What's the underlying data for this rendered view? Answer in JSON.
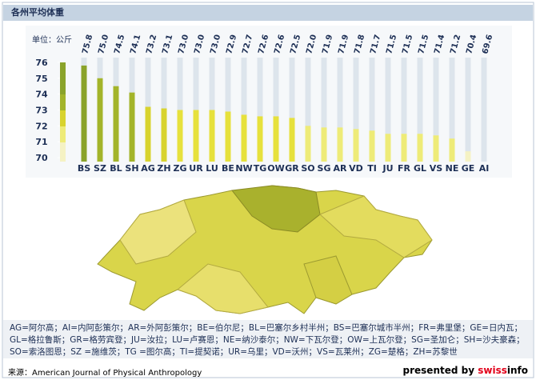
{
  "chart_data": {
    "type": "bar",
    "title": "各州平均体重",
    "unit_label": "单位：公斤",
    "categories": [
      "BS",
      "SZ",
      "BL",
      "SH",
      "AG",
      "ZH",
      "ZG",
      "UR",
      "LU",
      "BE",
      "NW",
      "TG",
      "OW",
      "GR",
      "SO",
      "SG",
      "AR",
      "VD",
      "TI",
      "JU",
      "FR",
      "GL",
      "VS",
      "NE",
      "GE",
      "AI"
    ],
    "values": [
      75.8,
      75.0,
      74.5,
      74.1,
      73.2,
      73.1,
      73.0,
      73.0,
      73.0,
      72.9,
      72.7,
      72.6,
      72.6,
      72.5,
      72.0,
      71.9,
      71.9,
      71.8,
      71.7,
      71.5,
      71.5,
      71.5,
      71.4,
      71.2,
      70.4,
      69.6
    ],
    "value_labels": [
      "75.8",
      "75.0",
      "74.5",
      "74.1",
      "73.2",
      "73.1",
      "73.0",
      "73.0",
      "73.0",
      "72.9",
      "72.7",
      "72.6",
      "72.6",
      "72.5",
      "72.0",
      "71.9",
      "71.9",
      "71.8",
      "71.7",
      "71.5",
      "71.5",
      "71.5",
      "71.4",
      "71.2",
      "70.4",
      "69.6"
    ],
    "colors": [
      "#8aa32a",
      "#a3b42a",
      "#a3b42a",
      "#a3b42a",
      "#d8d32e",
      "#d8d32e",
      "#e6e13c",
      "#e6e13c",
      "#e6e13c",
      "#e6e13c",
      "#e6e13c",
      "#e6e13c",
      "#e6e13c",
      "#e6e13c",
      "#eeeb78",
      "#eeeb78",
      "#eeeb78",
      "#eeeb78",
      "#eeeb78",
      "#eeeb78",
      "#eeeb78",
      "#eeeb78",
      "#eeeb78",
      "#eeeb78",
      "#f5f2c4",
      "#f5f2c4"
    ],
    "ylim": [
      69.75,
      76.3
    ],
    "yticks": [
      70,
      71,
      72,
      73,
      74,
      75,
      76
    ],
    "legend_note": "AG=阿尔高；AI=内阿彭策尔；AR=外阿彭策尔；BE=伯尔尼；BL=巴塞尔乡村半州；BS=巴塞尔城市半州；FR=弗里堡；GE=日内瓦；GL=格拉鲁斯；GR=格劳宾登；JU=汝拉；LU=卢赛恩；NE=纳沙泰尔；NW=下瓦尔登；OW=上瓦尔登；SG=圣加仑；SH=沙夫豪森；SO=索洛图恩；SZ =施维茨；TG =图尔高；TI=提契诺；UR=乌里；VD=沃州；VS=瓦莱州；ZG=楚格；ZH=苏黎世",
    "source": "来源：American Journal of Physical Anthropology",
    "brand_prefix": "presented by",
    "brand_red": "swiss",
    "brand_rest": "info"
  }
}
